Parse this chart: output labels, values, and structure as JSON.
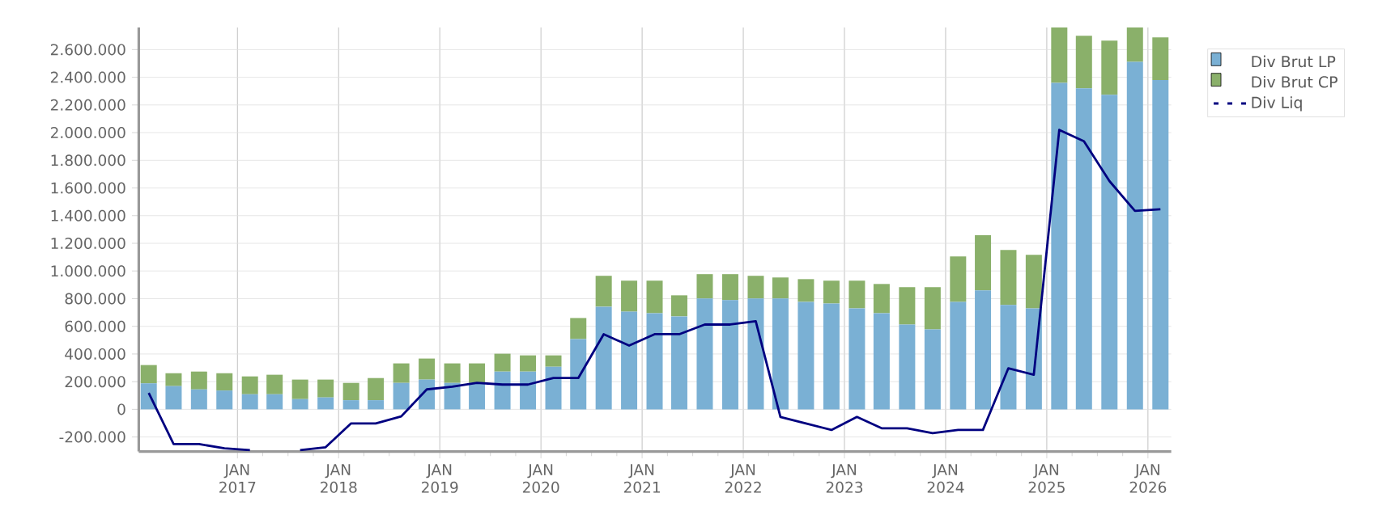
{
  "chart_data": {
    "type": "bar",
    "stacked": true,
    "grid": true,
    "legend": "top right",
    "x": [
      "2016-02-15",
      "2016-05-15",
      "2016-08-15",
      "2016-11-15",
      "2017-02-15",
      "2017-05-15",
      "2017-08-15",
      "2017-11-15",
      "2018-02-15",
      "2018-05-15",
      "2018-08-15",
      "2018-11-15",
      "2019-02-15",
      "2019-05-15",
      "2019-08-15",
      "2019-11-15",
      "2020-02-15",
      "2020-05-15",
      "2020-08-15",
      "2020-11-15",
      "2021-02-15",
      "2021-05-15",
      "2021-08-15",
      "2021-11-15",
      "2022-02-15",
      "2022-05-15",
      "2022-08-15",
      "2022-11-15",
      "2023-02-15",
      "2023-05-15",
      "2023-08-15",
      "2023-11-15",
      "2024-02-15",
      "2024-05-15",
      "2024-08-15",
      "2024-11-15",
      "2025-02-15",
      "2025-05-15",
      "2025-08-15",
      "2025-11-15",
      "2026-02-15"
    ],
    "series": [
      {
        "name": "Div Brut LP",
        "color": "#7ab0d4",
        "values": [
          188000,
          168000,
          144000,
          136000,
          109000,
          109000,
          74000,
          86000,
          66000,
          66000,
          191000,
          215000,
          191000,
          191000,
          273000,
          273000,
          308000,
          508000,
          742000,
          706000,
          695000,
          672000,
          801000,
          789000,
          801000,
          801000,
          777000,
          765000,
          730000,
          695000,
          613000,
          578000,
          777000,
          859000,
          754000,
          730000,
          2360000,
          2321000,
          2274000,
          2512000,
          2380000
        ]
      },
      {
        "name": "Div Brut CP",
        "color": "#8ab06a",
        "values": [
          132000,
          93000,
          129000,
          125000,
          129000,
          141000,
          141000,
          129000,
          125000,
          160000,
          141000,
          152000,
          141000,
          141000,
          129000,
          117000,
          82000,
          152000,
          223000,
          224000,
          235000,
          152000,
          176000,
          188000,
          164000,
          152000,
          164000,
          165000,
          200000,
          211000,
          270000,
          305000,
          328000,
          399000,
          398000,
          387000,
          400000,
          379000,
          391000,
          248000,
          309000
        ]
      },
      {
        "name": "Div Liq",
        "type": "line",
        "color": "#000080",
        "values": [
          118000,
          -251000,
          -251000,
          -282000,
          -295000,
          null,
          -295000,
          -274000,
          -102000,
          -102000,
          -51000,
          144000,
          164000,
          191000,
          179000,
          179000,
          226000,
          226000,
          543000,
          461000,
          543000,
          543000,
          613000,
          613000,
          637000,
          -55000,
          -102000,
          -149000,
          -55000,
          -137000,
          -137000,
          -172000,
          -149000,
          -149000,
          297000,
          250000,
          2020000,
          1938000,
          1650000,
          1434000,
          1446000
        ]
      }
    ],
    "xlim": [
      "2016-01-10",
      "2026-03-26"
    ],
    "xticks": [
      {
        "value": "2017-01",
        "label": "JAN 2017"
      },
      {
        "value": "2018-01",
        "label": "JAN 2018"
      },
      {
        "value": "2019-01",
        "label": "JAN 2019"
      },
      {
        "value": "2020-01",
        "label": "JAN 2020"
      },
      {
        "value": "2021-01",
        "label": "JAN 2021"
      },
      {
        "value": "2022-01",
        "label": "JAN 2022"
      },
      {
        "value": "2023-01",
        "label": "JAN 2023"
      },
      {
        "value": "2024-01",
        "label": "JAN 2024"
      },
      {
        "value": "2025-01",
        "label": "JAN 2025"
      },
      {
        "value": "2026-01",
        "label": "JAN 2026"
      }
    ],
    "ylim": [
      -305000,
      2760000
    ],
    "yticks": [
      {
        "value": -200000,
        "label": "-200.000"
      },
      0,
      {
        "value": 200000,
        "label": "200.000"
      },
      {
        "value": 400000,
        "label": "400.000"
      },
      {
        "value": 600000,
        "label": "600.000"
      },
      {
        "value": 800000,
        "label": "800.000"
      },
      {
        "value": 1000000,
        "label": "1.000.000"
      },
      {
        "value": 1200000,
        "label": "1.200.000"
      },
      {
        "value": 1400000,
        "label": "1.400.000"
      },
      {
        "value": 1600000,
        "label": "1.600.000"
      },
      {
        "value": 1800000,
        "label": "1.800.000"
      },
      {
        "value": 2000000,
        "label": "2.000.000"
      },
      {
        "value": 2200000,
        "label": "2.200.000"
      },
      {
        "value": 2400000,
        "label": "2.400.000"
      },
      {
        "value": 2600000,
        "label": "2.600.000"
      }
    ]
  }
}
